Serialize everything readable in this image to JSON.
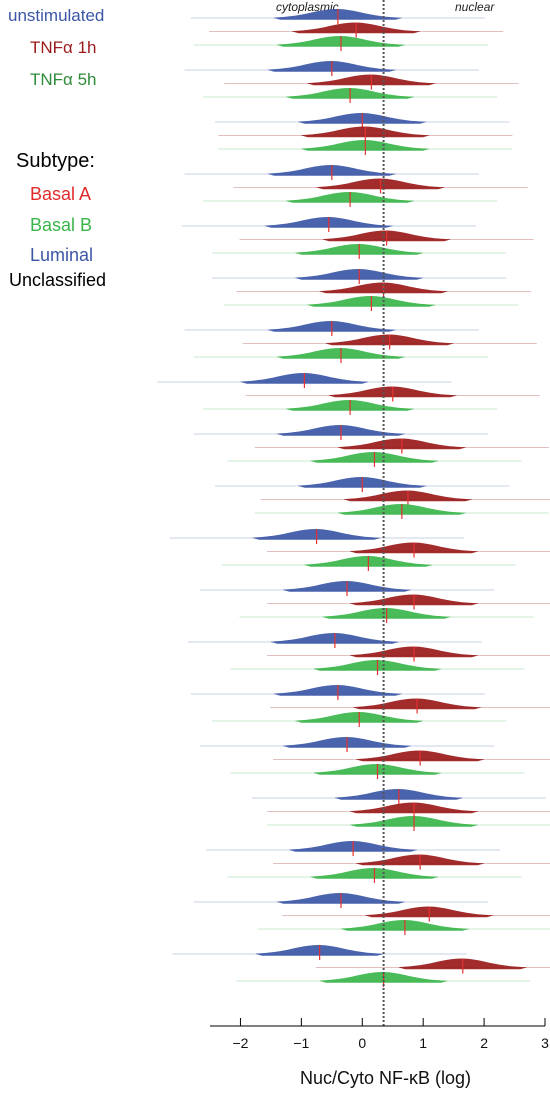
{
  "legend": {
    "conditions": [
      {
        "label": "unstimulated",
        "color": "#3b56a6"
      },
      {
        "label": "TNFα 1h",
        "color": "#9a1a1a"
      },
      {
        "label": "TNFα 5h",
        "color": "#2e8b3a"
      }
    ],
    "subtype_title": "Subtype:",
    "subtypes": [
      {
        "label": "Basal A",
        "color": "#e12b2b"
      },
      {
        "label": "Basal B",
        "color": "#3ab54a"
      },
      {
        "label": "Luminal",
        "color": "#3b56a6"
      },
      {
        "label": "Unclassified",
        "color": "#000000"
      }
    ]
  },
  "chart_data": {
    "type": "violin",
    "xlabel": "Nuc/Cyto NF-κB (log)",
    "xlim": [
      -2.5,
      3
    ],
    "xticks": [
      -2,
      -1,
      0,
      1,
      2,
      3
    ],
    "xtick_labels": [
      "−2",
      "−1",
      "0",
      "1",
      "2",
      "3"
    ],
    "reference_line_x": 0.35,
    "region_labels": {
      "left": "cytoplasmic",
      "right": "nuclear"
    },
    "series_colors": {
      "unstimulated": "#3b56a6",
      "TNFα 1h": "#9a1a1a",
      "TNFα 5h": "#3ab54a"
    },
    "cell_lines": [
      {
        "values": [
          -0.4,
          -0.1,
          -0.35
        ]
      },
      {
        "values": [
          -0.5,
          0.15,
          -0.2
        ]
      },
      {
        "values": [
          0.0,
          0.05,
          0.05
        ]
      },
      {
        "values": [
          -0.5,
          0.3,
          -0.2
        ]
      },
      {
        "values": [
          -0.55,
          0.4,
          -0.05
        ]
      },
      {
        "values": [
          -0.05,
          0.35,
          0.15
        ]
      },
      {
        "values": [
          -0.5,
          0.45,
          -0.35
        ]
      },
      {
        "values": [
          -0.95,
          0.5,
          -0.2
        ]
      },
      {
        "values": [
          -0.35,
          0.65,
          0.2
        ]
      },
      {
        "values": [
          0.0,
          0.75,
          0.65
        ]
      },
      {
        "values": [
          -0.75,
          0.85,
          0.1
        ]
      },
      {
        "values": [
          -0.25,
          0.85,
          0.4
        ]
      },
      {
        "values": [
          -0.45,
          0.85,
          0.25
        ]
      },
      {
        "values": [
          -0.4,
          0.9,
          -0.05
        ]
      },
      {
        "values": [
          -0.25,
          0.95,
          0.25
        ]
      },
      {
        "values": [
          0.6,
          0.85,
          0.85
        ]
      },
      {
        "values": [
          -0.15,
          0.95,
          0.2
        ]
      },
      {
        "values": [
          -0.35,
          1.1,
          0.7
        ]
      },
      {
        "values": [
          -0.7,
          1.65,
          0.35
        ]
      }
    ]
  }
}
